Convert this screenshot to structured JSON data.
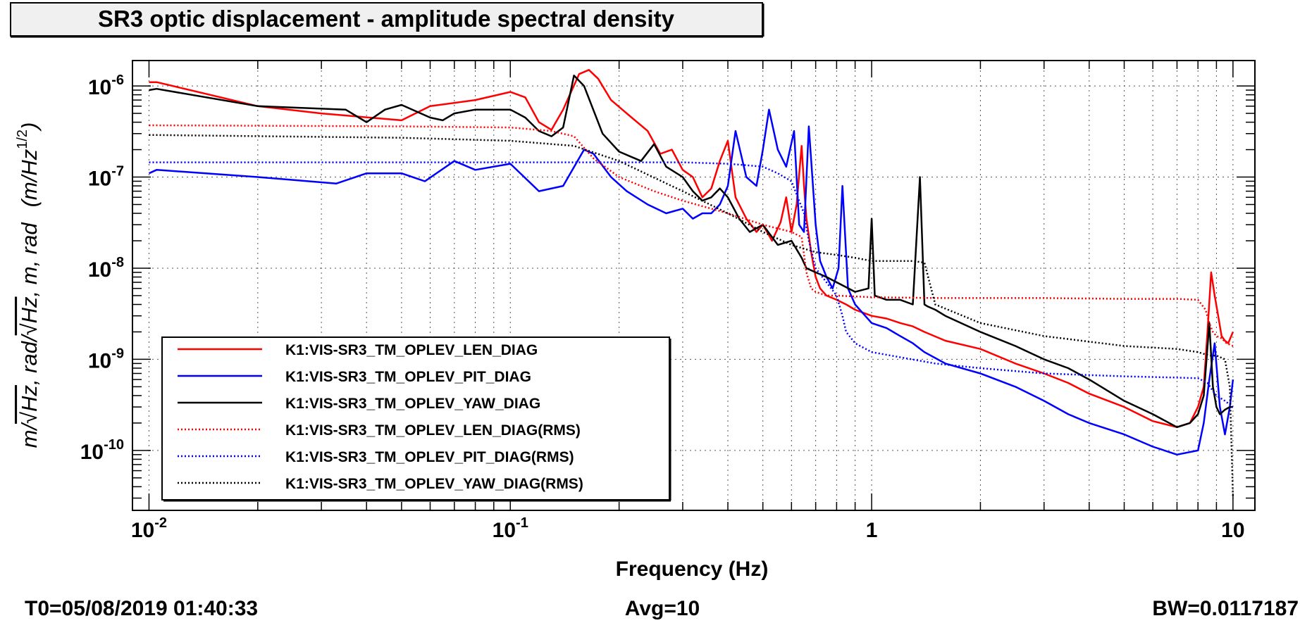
{
  "chart_data": {
    "type": "line",
    "title": "SR3 optic displacement - amplitude spectral density",
    "xlabel": "Frequency (Hz)",
    "ylabel_parts": [
      "m/",
      "√Hz",
      ", rad/",
      "√Hz",
      ", m, rad",
      "(m/Hz",
      "1/2",
      ")"
    ],
    "xscale": "log",
    "yscale": "log",
    "xlim": [
      0.009,
      11.5
    ],
    "ylim": [
      2.2e-11,
      1.9e-06
    ],
    "grid": true,
    "x_ticks": [
      {
        "value": 0.01,
        "base": "10",
        "exp": "-2"
      },
      {
        "value": 0.1,
        "base": "10",
        "exp": "-1"
      },
      {
        "value": 1,
        "base": "1",
        "exp": ""
      },
      {
        "value": 10,
        "base": "10",
        "exp": ""
      }
    ],
    "y_ticks": [
      {
        "value": 1e-06,
        "base": "10",
        "exp": "-6"
      },
      {
        "value": 1e-07,
        "base": "10",
        "exp": "-7"
      },
      {
        "value": 1e-08,
        "base": "10",
        "exp": "-8"
      },
      {
        "value": 1e-09,
        "base": "10",
        "exp": "-9"
      },
      {
        "value": 1e-10,
        "base": "10",
        "exp": "-10"
      }
    ],
    "legend_position": "bottom-left",
    "series": [
      {
        "name": "K1:VIS-SR3_TM_OPLEV_LEN_DIAG",
        "color": "#ff0000",
        "style": "solid",
        "x": [
          0.01,
          0.0105,
          0.02,
          0.03,
          0.05,
          0.06,
          0.08,
          0.1,
          0.11,
          0.12,
          0.13,
          0.14,
          0.155,
          0.165,
          0.175,
          0.19,
          0.21,
          0.24,
          0.26,
          0.28,
          0.3,
          0.32,
          0.34,
          0.36,
          0.38,
          0.4,
          0.42,
          0.45,
          0.48,
          0.5,
          0.53,
          0.56,
          0.58,
          0.6,
          0.62,
          0.64,
          0.65,
          0.66,
          0.68,
          0.7,
          0.72,
          0.75,
          0.8,
          0.85,
          0.9,
          1.0,
          1.1,
          1.2,
          1.3,
          1.4,
          1.6,
          2.0,
          2.5,
          3.0,
          3.5,
          4.0,
          5.0,
          6.0,
          7.0,
          7.6,
          8.0,
          8.3,
          8.5,
          8.7,
          8.9,
          9.1,
          9.3,
          9.5,
          9.7,
          10.0
        ],
        "y": [
          1.1e-06,
          1.1e-06,
          6e-07,
          5e-07,
          4.2e-07,
          6e-07,
          7e-07,
          8.6e-07,
          7.5e-07,
          4e-07,
          3.3e-07,
          5.5e-07,
          1.35e-06,
          1.5e-06,
          1.2e-06,
          7e-07,
          5e-07,
          3.2e-07,
          1.8e-07,
          2e-07,
          1.2e-07,
          1e-07,
          6e-08,
          7.5e-08,
          1.5e-07,
          2.5e-07,
          6e-08,
          3.5e-08,
          2.5e-08,
          3e-08,
          2e-08,
          3.2e-08,
          6e-08,
          2.5e-08,
          5e-08,
          2.2e-07,
          8e-08,
          3.5e-08,
          1.5e-08,
          8e-09,
          6e-09,
          5e-09,
          4.5e-09,
          4e-09,
          3.5e-09,
          3e-09,
          2.8e-09,
          2.5e-09,
          2.3e-09,
          2e-09,
          1.6e-09,
          1.3e-09,
          9e-10,
          7e-10,
          5.5e-10,
          4.2e-10,
          3e-10,
          2.1e-10,
          1.8e-10,
          2e-10,
          3e-10,
          5e-10,
          2e-09,
          9e-09,
          5e-09,
          3e-09,
          1.8e-09,
          1.6e-09,
          1.5e-09,
          2e-09
        ]
      },
      {
        "name": "K1:VIS-SR3_TM_OPLEV_PIT_DIAG",
        "color": "#0000ff",
        "style": "solid",
        "x": [
          0.01,
          0.0105,
          0.02,
          0.033,
          0.04,
          0.05,
          0.058,
          0.07,
          0.08,
          0.1,
          0.12,
          0.14,
          0.16,
          0.17,
          0.19,
          0.21,
          0.24,
          0.27,
          0.3,
          0.32,
          0.34,
          0.36,
          0.38,
          0.4,
          0.42,
          0.45,
          0.48,
          0.5,
          0.52,
          0.55,
          0.58,
          0.61,
          0.63,
          0.65,
          0.67,
          0.7,
          0.72,
          0.75,
          0.78,
          0.81,
          0.83,
          0.86,
          0.9,
          1.0,
          1.1,
          1.2,
          1.3,
          1.4,
          1.6,
          2.0,
          2.5,
          3.0,
          3.5,
          4.0,
          5.0,
          6.0,
          7.0,
          8.0,
          8.3,
          8.6,
          8.9,
          9.2,
          9.5,
          9.8,
          10.0
        ],
        "y": [
          1.1e-07,
          1.2e-07,
          1e-07,
          8.5e-08,
          1.1e-07,
          1.1e-07,
          9e-08,
          1.5e-07,
          1.2e-07,
          1.4e-07,
          7e-08,
          8e-08,
          2e-07,
          1.8e-07,
          1e-07,
          7e-08,
          5e-08,
          4e-08,
          4.5e-08,
          3.5e-08,
          4e-08,
          4e-08,
          5e-08,
          8e-08,
          3.2e-07,
          1e-07,
          8e-08,
          2e-07,
          5.5e-07,
          2e-07,
          1.3e-07,
          3.2e-07,
          3e-08,
          2.5e-08,
          3.6e-07,
          3e-08,
          1.2e-08,
          8e-09,
          6e-09,
          1e-08,
          8e-08,
          6e-09,
          4e-09,
          2.5e-09,
          2.2e-09,
          1.8e-09,
          1.5e-09,
          1.2e-09,
          9e-10,
          7e-10,
          5e-10,
          3.5e-10,
          2.5e-10,
          2e-10,
          1.5e-10,
          1.1e-10,
          9e-11,
          1e-10,
          2e-10,
          6e-10,
          1.5e-09,
          3e-10,
          1.5e-10,
          3e-10,
          6e-10
        ]
      },
      {
        "name": "K1:VIS-SR3_TM_OPLEV_YAW_DIAG",
        "color": "#000000",
        "style": "solid",
        "x": [
          0.01,
          0.0105,
          0.02,
          0.035,
          0.04,
          0.045,
          0.05,
          0.06,
          0.065,
          0.07,
          0.08,
          0.1,
          0.11,
          0.12,
          0.13,
          0.14,
          0.15,
          0.16,
          0.18,
          0.2,
          0.23,
          0.25,
          0.27,
          0.3,
          0.32,
          0.34,
          0.36,
          0.38,
          0.4,
          0.43,
          0.46,
          0.5,
          0.55,
          0.6,
          0.64,
          0.66,
          0.7,
          0.75,
          0.8,
          0.9,
          0.98,
          1.0,
          1.02,
          1.1,
          1.2,
          1.3,
          1.36,
          1.4,
          1.43,
          1.5,
          1.6,
          2.0,
          2.5,
          3.0,
          3.5,
          4.0,
          5.0,
          6.0,
          7.0,
          7.6,
          8.0,
          8.3,
          8.6,
          8.8,
          9.0,
          9.2,
          9.5,
          9.8,
          10.0
        ],
        "y": [
          9e-07,
          9.3e-07,
          6e-07,
          5.5e-07,
          4e-07,
          5.5e-07,
          6.2e-07,
          4.5e-07,
          4.2e-07,
          5e-07,
          5.5e-07,
          5.5e-07,
          4.5e-07,
          3.2e-07,
          2.8e-07,
          3.5e-07,
          1.3e-06,
          1e-06,
          3e-07,
          1.9e-07,
          1.5e-07,
          2.3e-07,
          1.3e-07,
          1e-07,
          7e-08,
          5.5e-08,
          6e-08,
          7.5e-08,
          6e-08,
          3.5e-08,
          2.5e-08,
          3e-08,
          1.8e-08,
          2e-08,
          1.3e-08,
          1e-08,
          9e-09,
          8e-09,
          7e-09,
          5.5e-09,
          6e-09,
          3.5e-08,
          5e-09,
          4.5e-09,
          4.5e-09,
          4e-09,
          1e-07,
          4e-09,
          3.8e-09,
          3.5e-09,
          3e-09,
          2e-09,
          1.4e-09,
          1e-09,
          8e-10,
          6e-10,
          3.5e-10,
          2.5e-10,
          1.8e-10,
          2e-10,
          2.5e-10,
          4e-10,
          2.5e-09,
          5e-10,
          3e-10,
          2.5e-10,
          2.8e-10,
          3e-10,
          3e-10
        ]
      },
      {
        "name": "K1:VIS-SR3_TM_OPLEV_LEN_DIAG(RMS)",
        "color": "#ff0000",
        "style": "dotted",
        "x": [
          0.01,
          0.05,
          0.1,
          0.13,
          0.15,
          0.17,
          0.2,
          0.25,
          0.3,
          0.4,
          0.5,
          0.6,
          0.64,
          0.66,
          0.68,
          0.7,
          0.75,
          0.8,
          1.0,
          1.5,
          2.0,
          3.0,
          5.0,
          7.0,
          8.0,
          8.4,
          8.6,
          8.8,
          9.0,
          9.3,
          9.6,
          10.0
        ],
        "y": [
          3.7e-07,
          3.6e-07,
          3.5e-07,
          3.2e-07,
          2.8e-07,
          1.6e-07,
          1e-07,
          7e-08,
          5.5e-08,
          4e-08,
          3e-08,
          2.5e-08,
          2.2e-08,
          9e-09,
          6e-09,
          5.5e-09,
          5e-09,
          5e-09,
          4.8e-09,
          4.7e-09,
          4.7e-09,
          4.7e-09,
          4.6e-09,
          4.6e-09,
          4.5e-09,
          3.5e-09,
          2.5e-09,
          2e-09,
          1.8e-09,
          1.7e-09,
          1.5e-09,
          1.4e-09
        ]
      },
      {
        "name": "K1:VIS-SR3_TM_OPLEV_PIT_DIAG(RMS)",
        "color": "#0000ff",
        "style": "dotted",
        "x": [
          0.01,
          0.05,
          0.1,
          0.15,
          0.2,
          0.3,
          0.4,
          0.45,
          0.5,
          0.55,
          0.6,
          0.65,
          0.67,
          0.7,
          0.75,
          0.8,
          0.83,
          0.85,
          0.9,
          1.0,
          1.5,
          2.0,
          3.0,
          5.0,
          7.0,
          8.0,
          8.5,
          8.8,
          9.0,
          9.5,
          10.0
        ],
        "y": [
          1.45e-07,
          1.45e-07,
          1.45e-07,
          1.45e-07,
          1.45e-07,
          1.45e-07,
          1.4e-07,
          1.35e-07,
          1.3e-07,
          1.1e-07,
          9e-08,
          4e-08,
          2e-08,
          1e-08,
          7e-09,
          5e-09,
          3e-09,
          2e-09,
          1.5e-09,
          1.2e-09,
          9e-10,
          8e-10,
          7e-10,
          6.5e-10,
          6.3e-10,
          6.2e-10,
          5.5e-10,
          4.5e-10,
          4e-10,
          3.5e-10,
          3e-10
        ]
      },
      {
        "name": "K1:VIS-SR3_TM_OPLEV_YAW_DIAG(RMS)",
        "color": "#000000",
        "style": "dotted",
        "x": [
          0.01,
          0.05,
          0.1,
          0.15,
          0.2,
          0.3,
          0.4,
          0.5,
          0.6,
          0.7,
          0.8,
          0.9,
          1.0,
          1.3,
          1.4,
          1.5,
          2.0,
          3.0,
          5.0,
          7.0,
          8.0,
          8.6,
          9.0,
          9.5,
          9.8,
          10.0
        ],
        "y": [
          2.9e-07,
          2.7e-07,
          2.5e-07,
          2.2e-07,
          1.5e-07,
          7e-08,
          4e-08,
          2.5e-08,
          1.8e-08,
          1.5e-08,
          1.4e-08,
          1.3e-08,
          1.2e-08,
          1.2e-08,
          1.15e-08,
          4e-09,
          2.5e-09,
          1.8e-09,
          1.4e-09,
          1.3e-09,
          1.2e-09,
          1.1e-09,
          1.1e-09,
          1e-09,
          5e-10,
          3e-11
        ]
      }
    ]
  },
  "footer": {
    "t0": "T0=05/08/2019 01:40:33",
    "avg": "Avg=10",
    "bw": "BW=0.0117187"
  }
}
